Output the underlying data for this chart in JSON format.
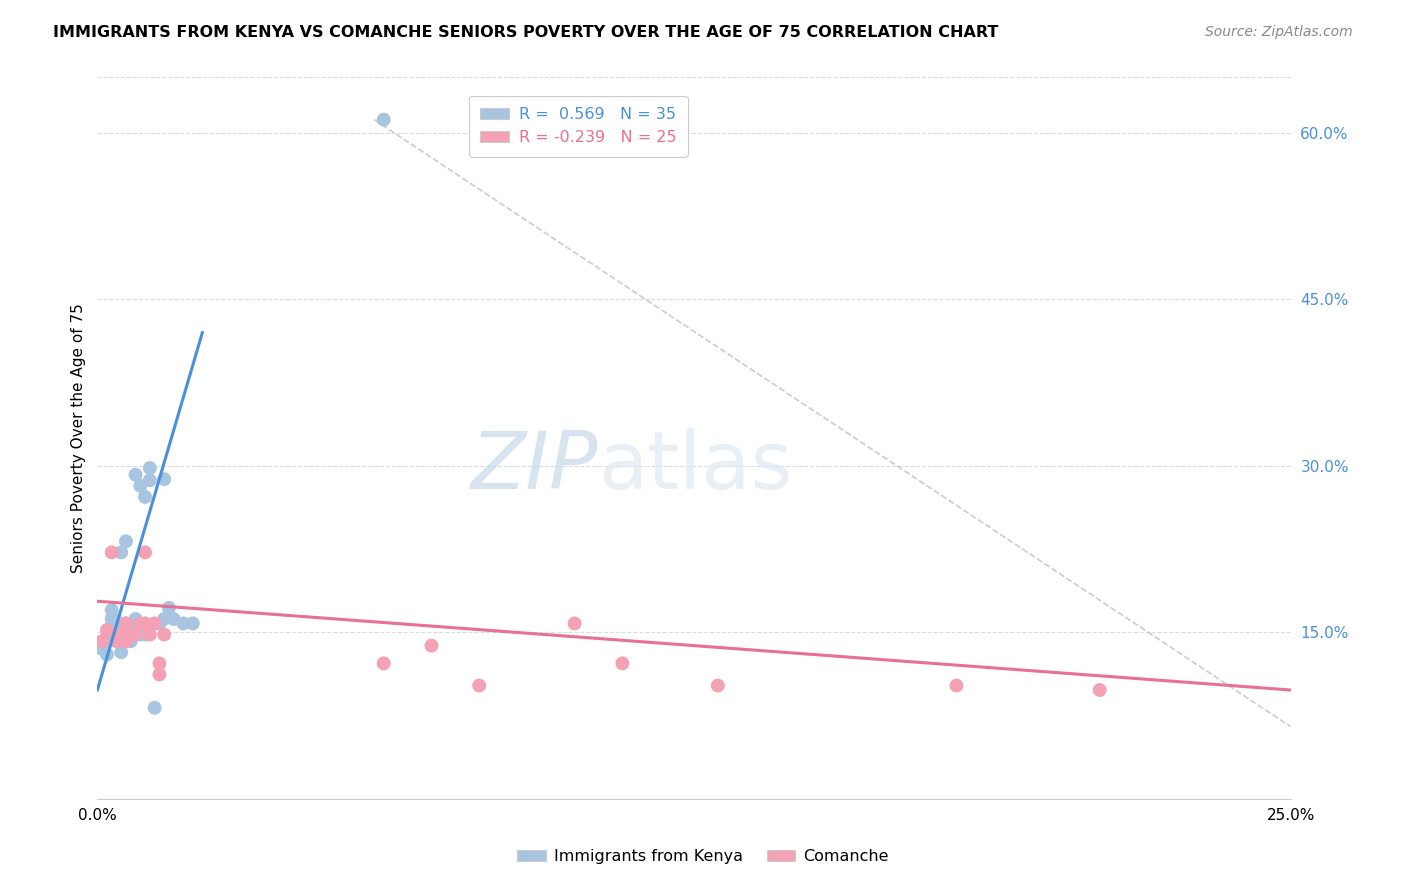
{
  "title": "IMMIGRANTS FROM KENYA VS COMANCHE SENIORS POVERTY OVER THE AGE OF 75 CORRELATION CHART",
  "source": "Source: ZipAtlas.com",
  "ylabel": "Seniors Poverty Over the Age of 75",
  "x_min": 0.0,
  "x_max": 0.25,
  "y_min": 0.0,
  "y_max": 0.65,
  "x_ticks": [
    0.0,
    0.05,
    0.1,
    0.15,
    0.2,
    0.25
  ],
  "x_tick_labels": [
    "0.0%",
    "",
    "",
    "",
    "",
    "25.0%"
  ],
  "y_ticks_right": [
    0.15,
    0.3,
    0.45,
    0.6
  ],
  "y_tick_labels_right": [
    "15.0%",
    "30.0%",
    "45.0%",
    "60.0%"
  ],
  "legend_r1": "R =  0.569   N = 35",
  "legend_r2": "R = -0.239   N = 25",
  "blue_color": "#a8c4e0",
  "pink_color": "#f4a0b5",
  "line_blue": "#4a90d9",
  "line_pink": "#e87090",
  "line_gray": "#b0b8c0",
  "watermark_zip": "ZIP",
  "watermark_atlas": "atlas",
  "kenya_points": [
    [
      0.001,
      0.135
    ],
    [
      0.002,
      0.13
    ],
    [
      0.002,
      0.145
    ],
    [
      0.003,
      0.143
    ],
    [
      0.003,
      0.155
    ],
    [
      0.003,
      0.162
    ],
    [
      0.003,
      0.17
    ],
    [
      0.004,
      0.148
    ],
    [
      0.004,
      0.152
    ],
    [
      0.004,
      0.16
    ],
    [
      0.005,
      0.132
    ],
    [
      0.005,
      0.148
    ],
    [
      0.005,
      0.222
    ],
    [
      0.006,
      0.142
    ],
    [
      0.006,
      0.158
    ],
    [
      0.006,
      0.232
    ],
    [
      0.007,
      0.142
    ],
    [
      0.007,
      0.158
    ],
    [
      0.008,
      0.162
    ],
    [
      0.008,
      0.292
    ],
    [
      0.009,
      0.148
    ],
    [
      0.009,
      0.282
    ],
    [
      0.01,
      0.148
    ],
    [
      0.01,
      0.272
    ],
    [
      0.011,
      0.287
    ],
    [
      0.011,
      0.298
    ],
    [
      0.012,
      0.082
    ],
    [
      0.013,
      0.158
    ],
    [
      0.014,
      0.162
    ],
    [
      0.014,
      0.288
    ],
    [
      0.015,
      0.172
    ],
    [
      0.016,
      0.162
    ],
    [
      0.018,
      0.158
    ],
    [
      0.02,
      0.158
    ],
    [
      0.06,
      0.612
    ]
  ],
  "comanche_points": [
    [
      0.001,
      0.142
    ],
    [
      0.002,
      0.152
    ],
    [
      0.003,
      0.222
    ],
    [
      0.004,
      0.142
    ],
    [
      0.005,
      0.148
    ],
    [
      0.006,
      0.142
    ],
    [
      0.006,
      0.158
    ],
    [
      0.007,
      0.148
    ],
    [
      0.008,
      0.148
    ],
    [
      0.009,
      0.158
    ],
    [
      0.01,
      0.158
    ],
    [
      0.01,
      0.222
    ],
    [
      0.011,
      0.148
    ],
    [
      0.012,
      0.158
    ],
    [
      0.013,
      0.112
    ],
    [
      0.013,
      0.122
    ],
    [
      0.014,
      0.148
    ],
    [
      0.06,
      0.122
    ],
    [
      0.07,
      0.138
    ],
    [
      0.08,
      0.102
    ],
    [
      0.1,
      0.158
    ],
    [
      0.11,
      0.122
    ],
    [
      0.13,
      0.102
    ],
    [
      0.18,
      0.102
    ],
    [
      0.21,
      0.098
    ]
  ],
  "blue_trend_x": [
    0.0,
    0.022
  ],
  "blue_trend_y": [
    0.098,
    0.42
  ],
  "pink_trend_x": [
    0.0,
    0.25
  ],
  "pink_trend_y": [
    0.178,
    0.098
  ],
  "diag_line_x": [
    0.058,
    0.25
  ],
  "diag_line_y": [
    0.612,
    0.065
  ]
}
